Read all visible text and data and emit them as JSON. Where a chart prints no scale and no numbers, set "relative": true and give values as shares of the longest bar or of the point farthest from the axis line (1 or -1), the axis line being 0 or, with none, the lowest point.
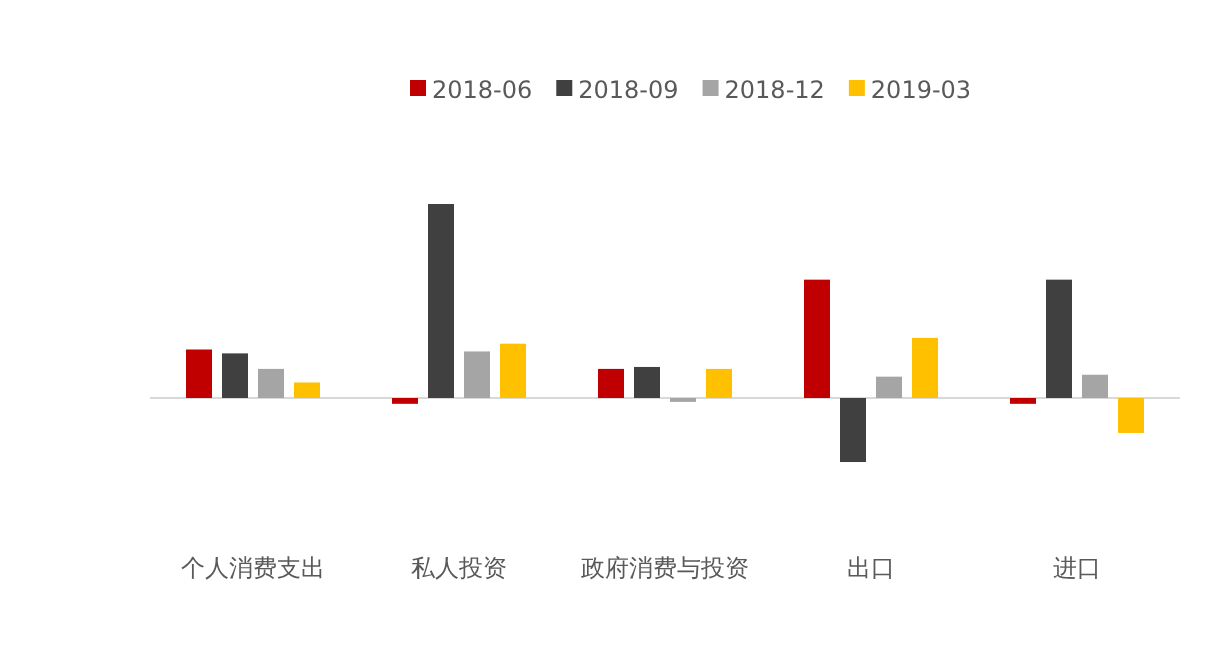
{
  "chart_data": {
    "type": "bar",
    "relative": true,
    "legend": "top",
    "categories": [
      "个人消费支出",
      "私人投资",
      "政府消费与投资",
      "出口",
      "进口"
    ],
    "series": [
      {
        "name": "2018-06",
        "color": "#c00000",
        "values": [
          0.25,
          -0.03,
          0.15,
          0.61,
          -0.03
        ]
      },
      {
        "name": "2018-09",
        "color": "#404040",
        "values": [
          0.23,
          1,
          0.16,
          -0.33,
          0.61
        ]
      },
      {
        "name": "2018-12",
        "color": "#a5a5a5",
        "values": [
          0.15,
          0.24,
          -0.02,
          0.11,
          0.12
        ]
      },
      {
        "name": "2019-03",
        "color": "#ffc000",
        "values": [
          0.08,
          0.28,
          0.15,
          0.31,
          -0.18
        ]
      }
    ]
  }
}
